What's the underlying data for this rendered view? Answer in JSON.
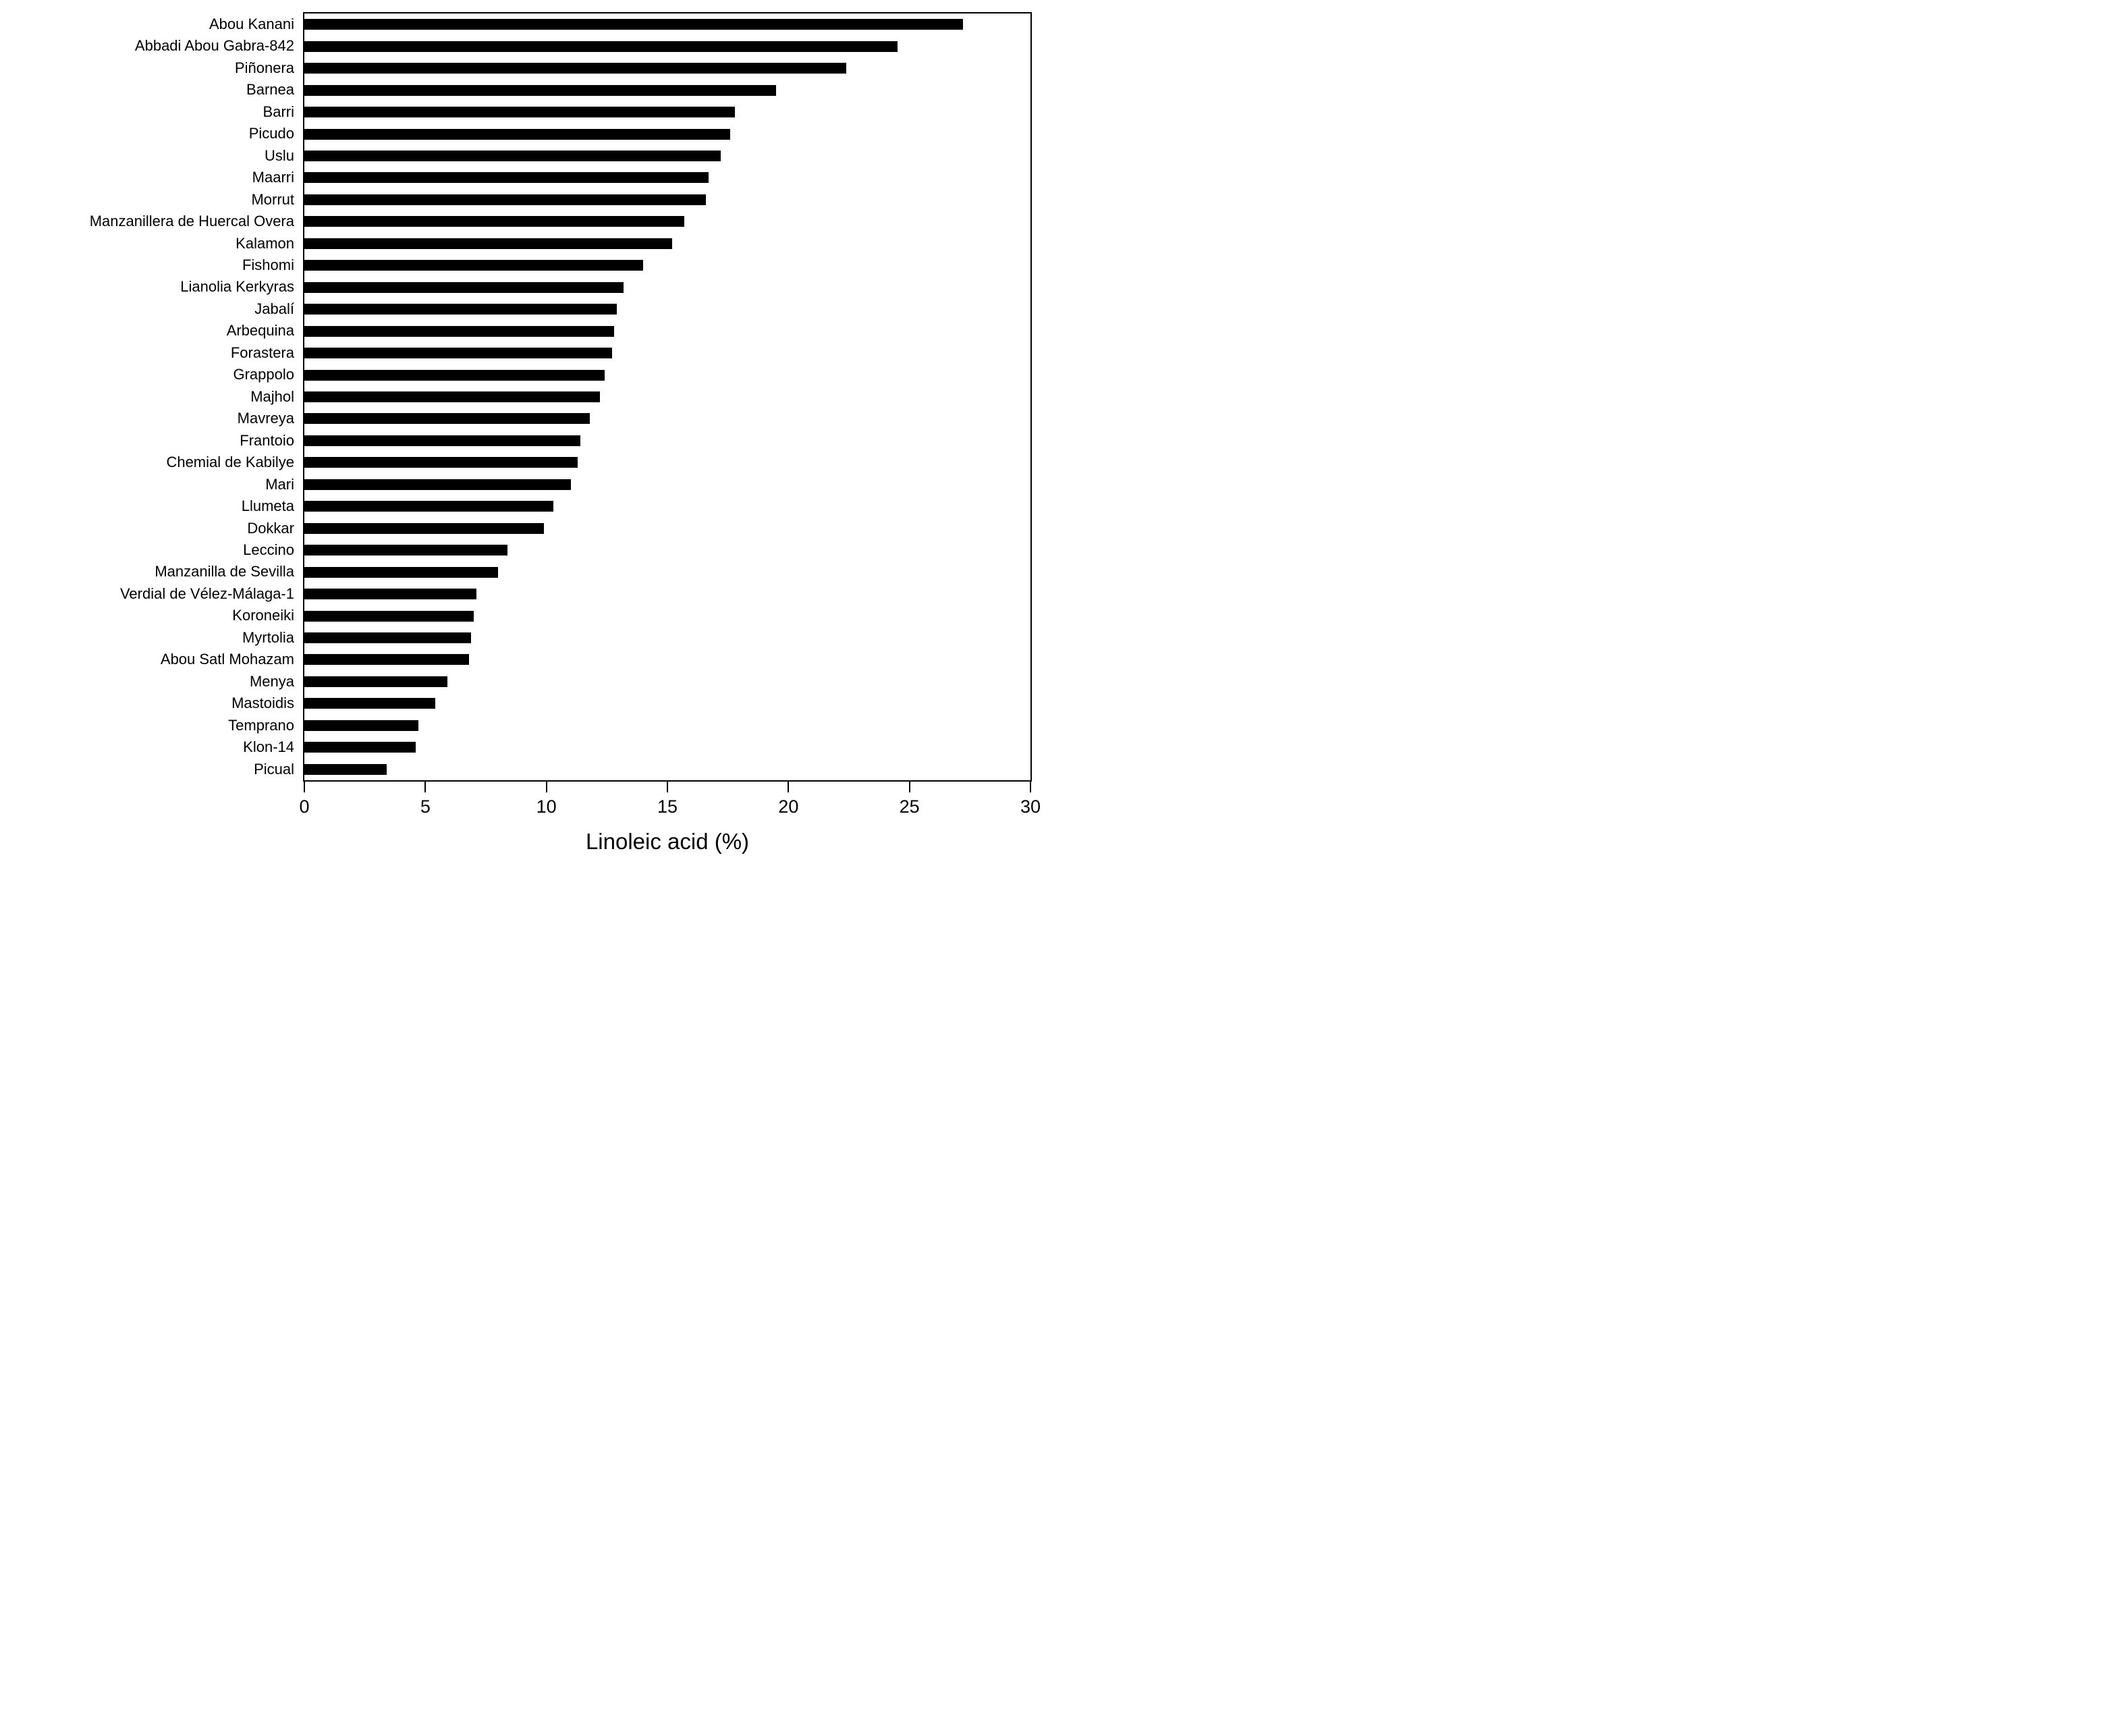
{
  "chart_data": {
    "type": "bar",
    "orientation": "horizontal",
    "title": "",
    "xlabel": "Linoleic acid (%)",
    "ylabel": "",
    "xlim": [
      0,
      30
    ],
    "xticks": [
      0,
      5,
      10,
      15,
      20,
      25,
      30
    ],
    "grid": false,
    "legend": "none",
    "bar_color": "#000000",
    "background_color": "#ffffff",
    "categories": [
      "Abou Kanani",
      "Abbadi Abou Gabra-842",
      "Piñonera",
      "Barnea",
      "Barri",
      "Picudo",
      "Uslu",
      "Maarri",
      "Morrut",
      "Manzanillera de Huercal Overa",
      "Kalamon",
      "Fishomi",
      "Lianolia Kerkyras",
      "Jabalí",
      "Arbequina",
      "Forastera",
      "Grappolo",
      "Majhol",
      "Mavreya",
      "Frantoio",
      "Chemial de Kabilye",
      "Mari",
      "Llumeta",
      "Dokkar",
      "Leccino",
      "Manzanilla de Sevilla",
      "Verdial de Vélez-Málaga-1",
      "Koroneiki",
      "Myrtolia",
      "Abou Satl Mohazam",
      "Menya",
      "Mastoidis",
      "Temprano",
      "Klon-14",
      "Picual"
    ],
    "values": [
      27.2,
      24.5,
      22.4,
      19.5,
      17.8,
      17.6,
      17.2,
      16.7,
      16.6,
      15.7,
      15.2,
      14.0,
      13.2,
      12.9,
      12.8,
      12.7,
      12.4,
      12.2,
      11.8,
      11.4,
      11.3,
      11.0,
      10.3,
      9.9,
      8.4,
      8.0,
      7.1,
      7.0,
      6.9,
      6.8,
      5.9,
      5.4,
      4.7,
      4.6,
      3.4
    ]
  }
}
